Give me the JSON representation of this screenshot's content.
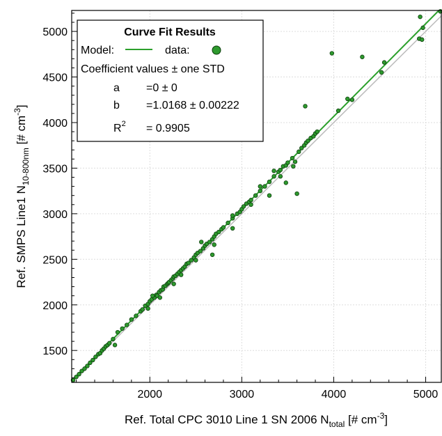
{
  "chart_data": {
    "type": "scatter",
    "xlabel": "Ref. Total CPC 3010 Line 1 SN 2006 N",
    "xlabel_sub": "total",
    "xlabel_unit_pre": " [# cm",
    "xlabel_sup": "-3",
    "xlabel_unit_post": "]",
    "ylabel": "Ref. SMPS Line1 N",
    "ylabel_sub": "10-800nm",
    "ylabel_unit_pre": " [# cm",
    "ylabel_sup": "-3",
    "ylabel_unit_post": "]",
    "xlim": [
      1150,
      5170
    ],
    "ylim": [
      1150,
      5230
    ],
    "xticks": [
      2000,
      3000,
      4000,
      5000
    ],
    "yticks": [
      1500,
      2000,
      2500,
      3000,
      3500,
      4000,
      4500,
      5000
    ],
    "grid": true,
    "legend": {
      "placement": "top-left",
      "title": "Curve Fit Results",
      "model_label": "Model:",
      "data_label": "data:",
      "coef_header": "Coefficient values ± one STD",
      "coefficients": [
        {
          "name": "a",
          "value": "=0 ± 0"
        },
        {
          "name": "b",
          "value": "=1.0168 ± 0.00222"
        },
        {
          "name": "R",
          "sup": "2",
          "value": "= 0.9905"
        }
      ]
    },
    "fit": {
      "intercept": 0,
      "slope": 1.0168,
      "color": "#2ca02c"
    },
    "one_to_one": {
      "slope": 1,
      "color": "#bbbbbb"
    },
    "marker_color": "#2e9a2e",
    "points": [
      [
        1165,
        1175
      ],
      [
        1200,
        1210
      ],
      [
        1230,
        1240
      ],
      [
        1260,
        1275
      ],
      [
        1290,
        1300
      ],
      [
        1320,
        1330
      ],
      [
        1350,
        1365
      ],
      [
        1380,
        1395
      ],
      [
        1410,
        1430
      ],
      [
        1440,
        1460
      ],
      [
        1460,
        1470
      ],
      [
        1480,
        1500
      ],
      [
        1500,
        1520
      ],
      [
        1520,
        1545
      ],
      [
        1540,
        1560
      ],
      [
        1560,
        1580
      ],
      [
        1600,
        1625
      ],
      [
        1620,
        1560
      ],
      [
        1650,
        1700
      ],
      [
        1700,
        1740
      ],
      [
        1750,
        1780
      ],
      [
        1800,
        1840
      ],
      [
        1850,
        1880
      ],
      [
        1900,
        1930
      ],
      [
        1920,
        1950
      ],
      [
        1950,
        1990
      ],
      [
        1980,
        2010
      ],
      [
        2000,
        2040
      ],
      [
        2020,
        2060
      ],
      [
        2050,
        2080
      ],
      [
        2070,
        2110
      ],
      [
        2080,
        2100
      ],
      [
        2100,
        2140
      ],
      [
        2120,
        2160
      ],
      [
        2140,
        2170
      ],
      [
        2150,
        2200
      ],
      [
        2170,
        2210
      ],
      [
        2190,
        2230
      ],
      [
        2200,
        2240
      ],
      [
        2210,
        2250
      ],
      [
        2230,
        2270
      ],
      [
        2250,
        2290
      ],
      [
        2260,
        2310
      ],
      [
        2280,
        2320
      ],
      [
        2300,
        2340
      ],
      [
        2320,
        2360
      ],
      [
        2340,
        2380
      ],
      [
        2360,
        2400
      ],
      [
        2380,
        2420
      ],
      [
        2400,
        2450
      ],
      [
        2420,
        2460
      ],
      [
        2450,
        2490
      ],
      [
        2480,
        2520
      ],
      [
        2500,
        2550
      ],
      [
        2520,
        2570
      ],
      [
        2550,
        2590
      ],
      [
        2580,
        2620
      ],
      [
        2600,
        2650
      ],
      [
        2620,
        2670
      ],
      [
        2650,
        2690
      ],
      [
        2680,
        2720
      ],
      [
        2700,
        2750
      ],
      [
        2720,
        2780
      ],
      [
        2750,
        2800
      ],
      [
        2780,
        2830
      ],
      [
        2800,
        2850
      ],
      [
        2850,
        2900
      ],
      [
        2900,
        2950
      ],
      [
        2950,
        3000
      ],
      [
        2980,
        3020
      ],
      [
        3000,
        3050
      ],
      [
        3020,
        3080
      ],
      [
        3050,
        3110
      ],
      [
        3080,
        3130
      ],
      [
        3100,
        3150
      ],
      [
        3150,
        3200
      ],
      [
        3200,
        3250
      ],
      [
        3250,
        3300
      ],
      [
        3300,
        3350
      ],
      [
        3350,
        3410
      ],
      [
        3400,
        3460
      ],
      [
        3420,
        3480
      ],
      [
        3450,
        3520
      ],
      [
        3480,
        3530
      ],
      [
        3500,
        3560
      ],
      [
        3550,
        3610
      ],
      [
        3580,
        3570
      ],
      [
        3600,
        3220
      ],
      [
        3620,
        3680
      ],
      [
        3650,
        3720
      ],
      [
        3680,
        3750
      ],
      [
        3700,
        3780
      ],
      [
        3720,
        3800
      ],
      [
        3750,
        3830
      ],
      [
        3780,
        3850
      ],
      [
        3800,
        3880
      ],
      [
        3820,
        3900
      ],
      [
        3690,
        4180
      ],
      [
        3980,
        4760
      ],
      [
        4050,
        4130
      ],
      [
        4150,
        4260
      ],
      [
        4200,
        4250
      ],
      [
        4310,
        4720
      ],
      [
        4520,
        4550
      ],
      [
        4550,
        4660
      ],
      [
        4930,
        4920
      ],
      [
        4960,
        4910
      ],
      [
        4940,
        5160
      ],
      [
        4970,
        5040
      ],
      [
        5160,
        5220
      ],
      [
        2560,
        2690
      ],
      [
        2680,
        2550
      ],
      [
        2900,
        2840
      ],
      [
        3300,
        3200
      ],
      [
        3420,
        3410
      ],
      [
        3480,
        3340
      ],
      [
        3560,
        3520
      ],
      [
        3100,
        3100
      ],
      [
        2340,
        2330
      ],
      [
        2030,
        2100
      ],
      [
        1980,
        1960
      ],
      [
        2110,
        2080
      ],
      [
        2260,
        2230
      ],
      [
        2500,
        2490
      ],
      [
        2700,
        2660
      ],
      [
        2900,
        2980
      ],
      [
        3200,
        3300
      ],
      [
        3350,
        3470
      ]
    ]
  }
}
